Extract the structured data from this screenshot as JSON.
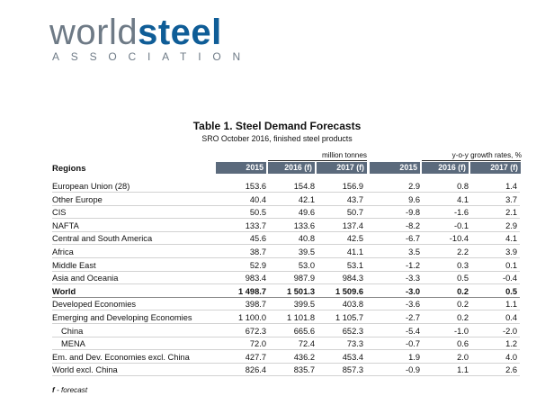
{
  "logo": {
    "word1": "world",
    "word2": "steel",
    "sub": "ASSOCIATION"
  },
  "table": {
    "title": "Table 1. Steel Demand Forecasts",
    "subtitle": "SRO October 2016, finished steel products",
    "unit_left": "million tonnes",
    "unit_right": "y-o-y growth rates, %",
    "regions_header": "Regions",
    "columns_left": [
      "2015",
      "2016 (f)",
      "2017 (f)"
    ],
    "columns_right": [
      "2015",
      "2016 (f)",
      "2017 (f)"
    ],
    "rows": [
      {
        "name": "European Union (28)",
        "values": [
          "153.6",
          "154.8",
          "156.9",
          "2.9",
          "0.8",
          "1.4"
        ]
      },
      {
        "name": "Other Europe",
        "values": [
          "40.4",
          "42.1",
          "43.7",
          "9.6",
          "4.1",
          "3.7"
        ]
      },
      {
        "name": "CIS",
        "values": [
          "50.5",
          "49.6",
          "50.7",
          "-9.8",
          "-1.6",
          "2.1"
        ]
      },
      {
        "name": "NAFTA",
        "values": [
          "133.7",
          "133.6",
          "137.4",
          "-8.2",
          "-0.1",
          "2.9"
        ]
      },
      {
        "name": "Central and South America",
        "values": [
          "45.6",
          "40.8",
          "42.5",
          "-6.7",
          "-10.4",
          "4.1"
        ]
      },
      {
        "name": "Africa",
        "values": [
          "38.7",
          "39.5",
          "41.1",
          "3.5",
          "2.2",
          "3.9"
        ]
      },
      {
        "name": "Middle East",
        "values": [
          "52.9",
          "53.0",
          "53.1",
          "-1.2",
          "0.3",
          "0.1"
        ]
      },
      {
        "name": "Asia and Oceania",
        "values": [
          "983.4",
          "987.9",
          "984.3",
          "-3.3",
          "0.5",
          "-0.4"
        ]
      },
      {
        "name": "World",
        "values": [
          "1 498.7",
          "1 501.3",
          "1 509.6",
          "-3.0",
          "0.2",
          "0.5"
        ]
      },
      {
        "name": "Developed Economies",
        "values": [
          "398.7",
          "399.5",
          "403.8",
          "-3.6",
          "0.2",
          "1.1"
        ]
      },
      {
        "name": "Emerging and Developing Economies",
        "values": [
          "1 100.0",
          "1 101.8",
          "1 105.7",
          "-2.7",
          "0.2",
          "0.4"
        ]
      },
      {
        "name": "China",
        "values": [
          "672.3",
          "665.6",
          "652.3",
          "-5.4",
          "-1.0",
          "-2.0"
        ]
      },
      {
        "name": "MENA",
        "values": [
          "72.0",
          "72.4",
          "73.3",
          "-0.7",
          "0.6",
          "1.2"
        ]
      },
      {
        "name": "Em. and Dev. Economies excl. China",
        "values": [
          "427.7",
          "436.2",
          "453.4",
          "1.9",
          "2.0",
          "4.0"
        ]
      },
      {
        "name": "World excl. China",
        "values": [
          "826.4",
          "835.7",
          "857.3",
          "-0.9",
          "1.1",
          "2.6"
        ]
      }
    ],
    "footnote_letter": "f",
    "footnote_text": " - forecast"
  }
}
